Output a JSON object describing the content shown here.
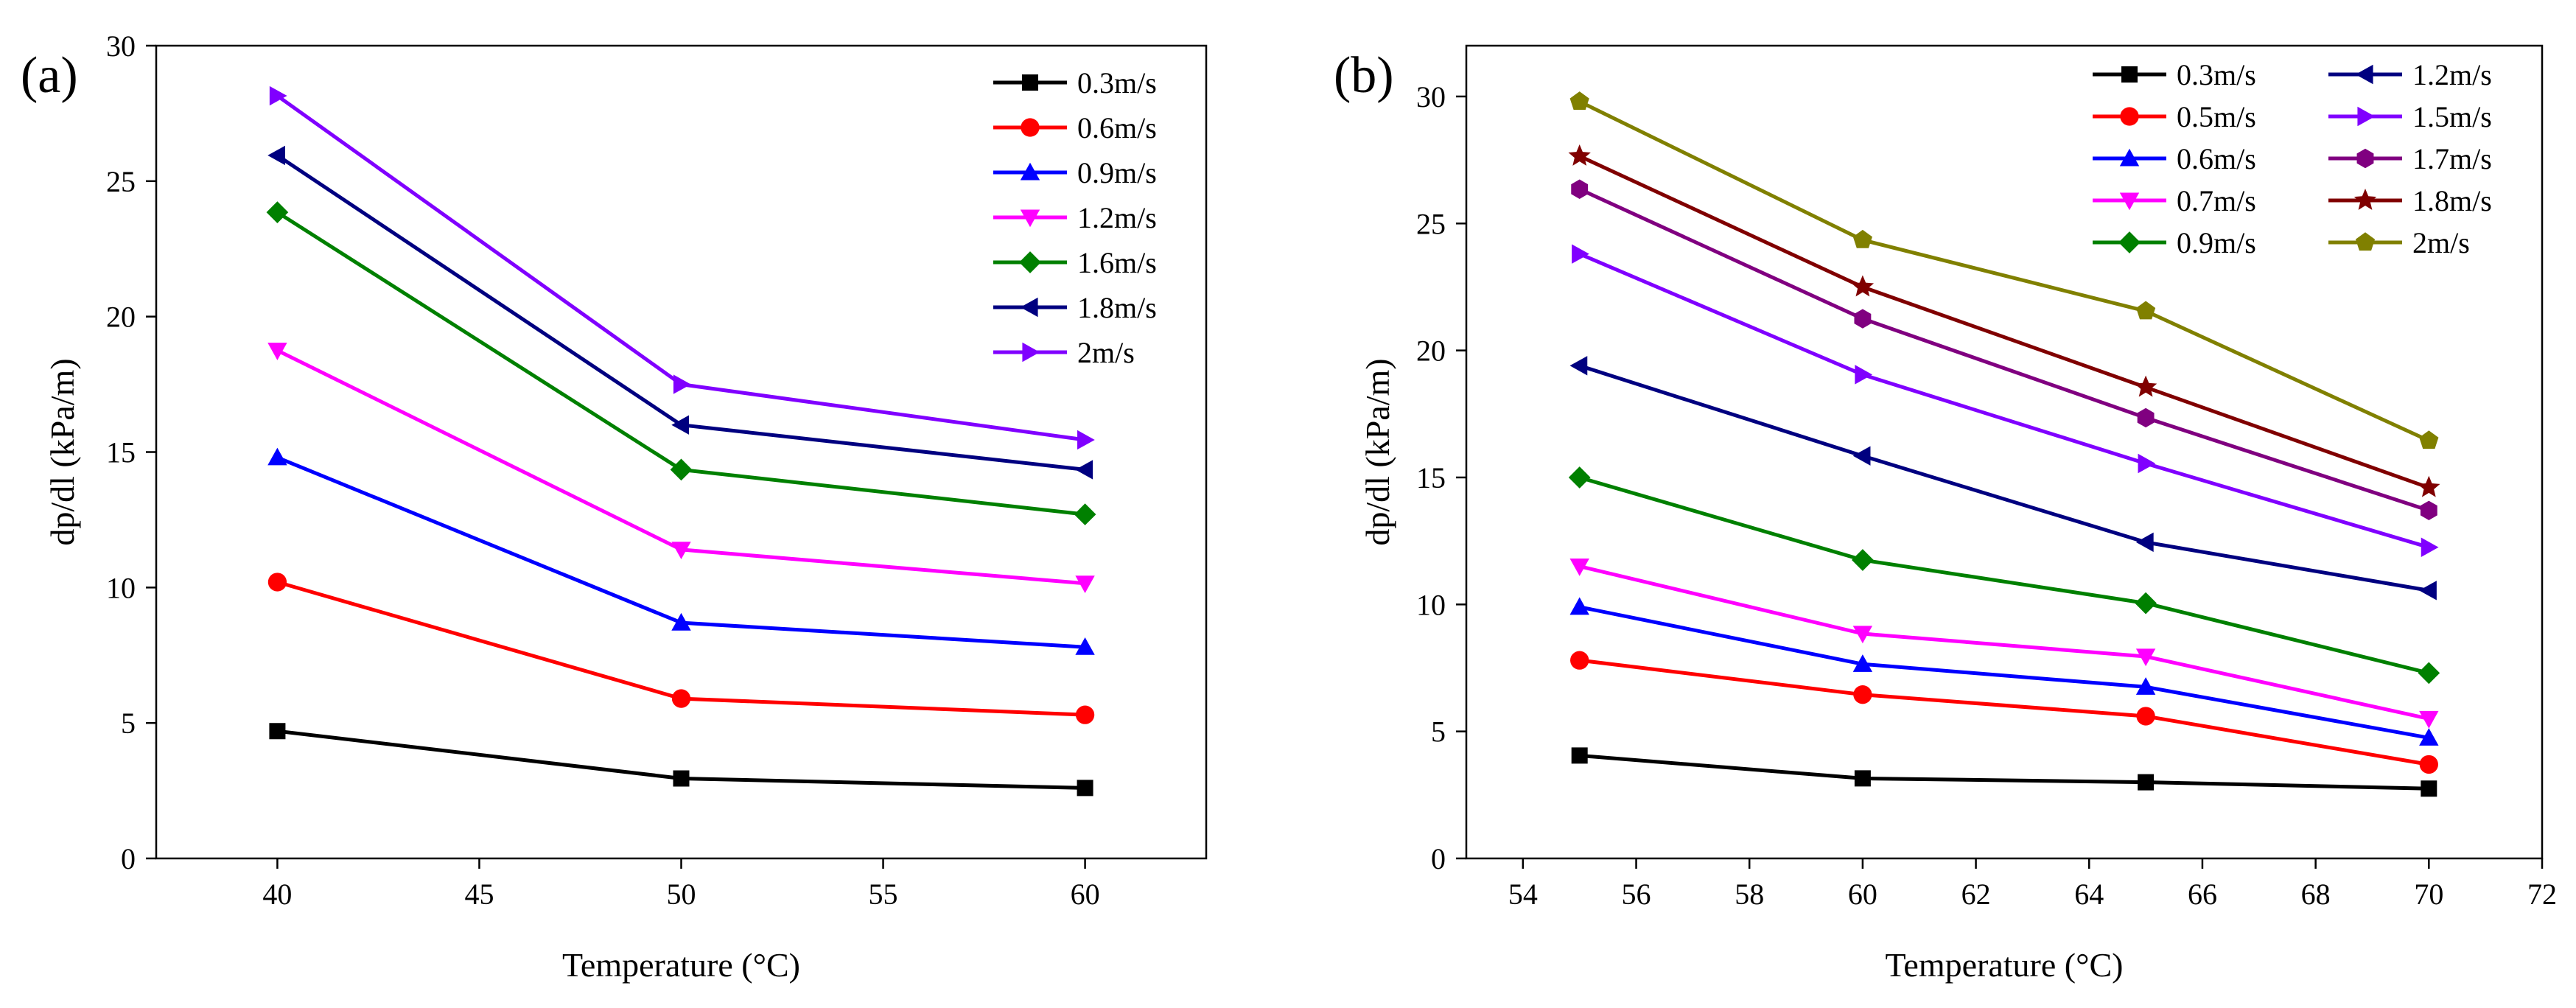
{
  "figure": {
    "colors": {
      "black": "#000000",
      "red": "#ff0000",
      "blue": "#0000ff",
      "magenta": "#ff00ff",
      "green": "#008000",
      "navy": "#000080",
      "violet": "#8000ff",
      "purple": "#800080",
      "darkred": "#800000",
      "olive": "#808000"
    }
  },
  "chart_data": [
    {
      "type": "line",
      "panel_label": "(a)",
      "xlabel": "Temperature (°C)",
      "ylabel": "dp/dl (kPa/m)",
      "xlim": [
        37,
        63
      ],
      "ylim": [
        0,
        30
      ],
      "xticks": [
        40,
        45,
        50,
        55,
        60
      ],
      "yticks": [
        0,
        5,
        10,
        15,
        20,
        25,
        30
      ],
      "x": [
        40,
        50,
        60
      ],
      "legend_position": "top-right",
      "series": [
        {
          "name": "0.3m/s",
          "values": [
            4.7,
            2.95,
            2.6
          ],
          "color": "#000000",
          "marker": "square"
        },
        {
          "name": "0.6m/s",
          "values": [
            10.2,
            5.9,
            5.3
          ],
          "color": "#ff0000",
          "marker": "circle"
        },
        {
          "name": "0.9m/s",
          "values": [
            14.8,
            8.7,
            7.8
          ],
          "color": "#0000ff",
          "marker": "triangle-up"
        },
        {
          "name": "1.2m/s",
          "values": [
            18.75,
            11.4,
            10.15
          ],
          "color": "#ff00ff",
          "marker": "triangle-down"
        },
        {
          "name": "1.6m/s",
          "values": [
            23.85,
            14.35,
            12.7
          ],
          "color": "#008000",
          "marker": "diamond"
        },
        {
          "name": "1.8m/s",
          "values": [
            25.95,
            16.0,
            14.35
          ],
          "color": "#000080",
          "marker": "triangle-left"
        },
        {
          "name": "2m/s",
          "values": [
            28.15,
            17.5,
            15.45
          ],
          "color": "#8000ff",
          "marker": "triangle-right"
        }
      ]
    },
    {
      "type": "line",
      "panel_label": "(b)",
      "xlabel": "Temperature (°C)",
      "ylabel": "dp/dl (kPa/m)",
      "xlim": [
        53,
        72
      ],
      "ylim": [
        0,
        32
      ],
      "xticks": [
        54,
        56,
        58,
        60,
        62,
        64,
        66,
        68,
        70,
        72
      ],
      "yticks": [
        0,
        5,
        10,
        15,
        20,
        25,
        30
      ],
      "x": [
        55,
        60,
        65,
        70
      ],
      "legend_position": "top-right",
      "series": [
        {
          "name": "0.3m/s",
          "values": [
            4.05,
            3.15,
            3.0,
            2.75
          ],
          "color": "#000000",
          "marker": "square"
        },
        {
          "name": "0.5m/s",
          "values": [
            7.8,
            6.45,
            5.6,
            3.7
          ],
          "color": "#ff0000",
          "marker": "circle"
        },
        {
          "name": "0.6m/s",
          "values": [
            9.9,
            7.65,
            6.75,
            4.75
          ],
          "color": "#0000ff",
          "marker": "triangle-up"
        },
        {
          "name": "0.7m/s",
          "values": [
            11.5,
            8.85,
            7.95,
            5.5
          ],
          "color": "#ff00ff",
          "marker": "triangle-down"
        },
        {
          "name": "0.9m/s",
          "values": [
            15.0,
            11.75,
            10.05,
            7.3
          ],
          "color": "#008000",
          "marker": "diamond"
        },
        {
          "name": "1.2m/s",
          "values": [
            19.4,
            15.85,
            12.45,
            10.55
          ],
          "color": "#000080",
          "marker": "triangle-left"
        },
        {
          "name": "1.5m/s",
          "values": [
            23.8,
            19.05,
            15.55,
            12.25
          ],
          "color": "#8000ff",
          "marker": "triangle-right"
        },
        {
          "name": "1.7m/s",
          "values": [
            26.35,
            21.25,
            17.35,
            13.7
          ],
          "color": "#800080",
          "marker": "hexagon"
        },
        {
          "name": "1.8m/s",
          "values": [
            27.65,
            22.5,
            18.55,
            14.6
          ],
          "color": "#800000",
          "marker": "star"
        },
        {
          "name": "2m/s",
          "values": [
            29.8,
            24.35,
            21.55,
            16.45
          ],
          "color": "#808000",
          "marker": "pentagon"
        }
      ]
    }
  ]
}
